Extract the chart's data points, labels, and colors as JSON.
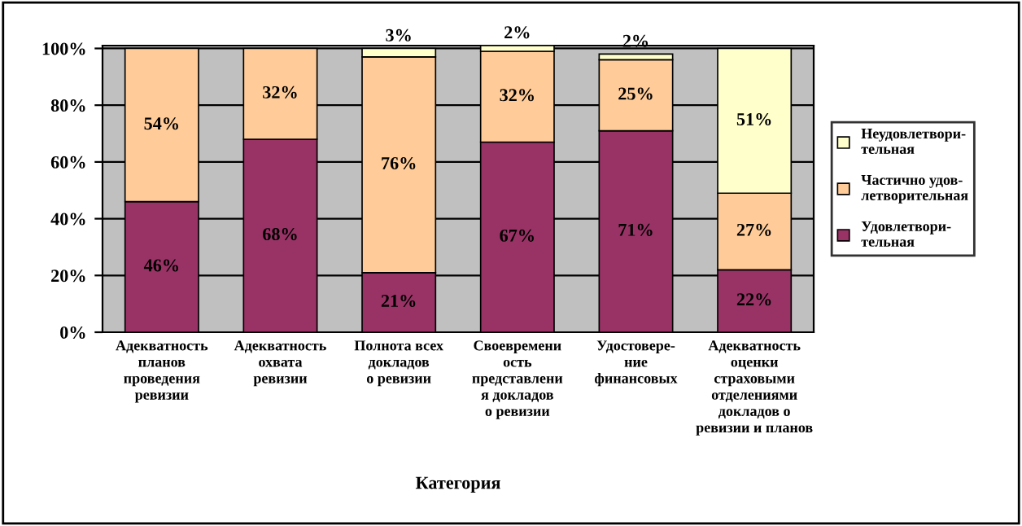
{
  "chart_data": {
    "type": "bar",
    "stacked": true,
    "xlabel": "Категория",
    "categories": [
      "Адекватность\nпланов\nпроведения\nревизии",
      "Адекватность\nохвата\nревизии",
      "Полнота всех\nдокладов\nо ревизии",
      "Своевремени\nость\nпредставлени\nя докладов\nо ревизии",
      "Удостовере-\nние\nфинансовых",
      "Адекватность\nоценки\nстраховыми\nотделениями\nдокладов о\nревизии и планов"
    ],
    "series": [
      {
        "name": "Удовлетвори-\nтельная",
        "color": "#993366",
        "values": [
          46,
          68,
          21,
          67,
          71,
          22
        ],
        "value_labels": [
          "46%",
          "68%",
          "21%",
          "67%",
          "71%",
          "22%"
        ]
      },
      {
        "name": "Частично удов-\nлетворительная",
        "color": "#ffcc99",
        "values": [
          54,
          32,
          76,
          32,
          25,
          27
        ],
        "value_labels": [
          "54%",
          "32%",
          "76%",
          "32%",
          "25%",
          "27%"
        ]
      },
      {
        "name": "Неудовлетвори-\nтельная",
        "color": "#ffffcc",
        "values": [
          null,
          null,
          3,
          2,
          2,
          51
        ],
        "value_labels": [
          null,
          null,
          "3%",
          "2%",
          "2%",
          "51%"
        ]
      }
    ],
    "ylim": [
      0,
      101
    ],
    "yticks": [
      {
        "value": 0,
        "label": "0%"
      },
      {
        "value": 20,
        "label": "20%"
      },
      {
        "value": 40,
        "label": "40%"
      },
      {
        "value": 60,
        "label": "60%"
      },
      {
        "value": 80,
        "label": "80%"
      },
      {
        "value": 100,
        "label": "100%"
      }
    ],
    "grid": "y",
    "legend": "right"
  }
}
